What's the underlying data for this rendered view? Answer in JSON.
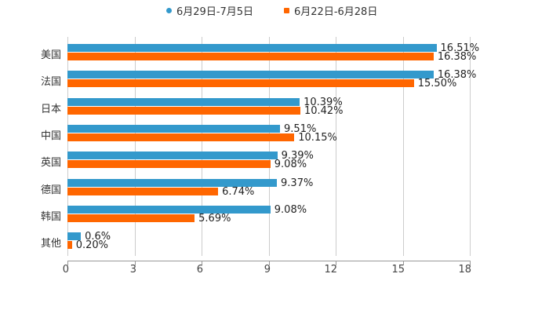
{
  "chart_data": {
    "type": "bar",
    "orientation": "horizontal",
    "title": "",
    "xlabel": "",
    "ylabel": "",
    "xlim": [
      0,
      18
    ],
    "x_ticks": [
      "0",
      "3",
      "6",
      "9",
      "12",
      "15",
      "18"
    ],
    "grid": true,
    "legend_position": "top",
    "categories": [
      "美国",
      "法国",
      "日本",
      "中国",
      "英国",
      "德国",
      "韩国",
      "其他"
    ],
    "series": [
      {
        "name": "6月29日-7月5日",
        "color": "#3399cc",
        "values": [
          16.51,
          16.38,
          10.39,
          9.51,
          9.39,
          9.37,
          9.08,
          0.6
        ],
        "labels": [
          "16.51%",
          "16.38%",
          "10.39%",
          "9.51%",
          "9.39%",
          "9.37%",
          "9.08%",
          "0.6%"
        ]
      },
      {
        "name": "6月22日-6月28日",
        "color": "#ff6600",
        "values": [
          16.38,
          15.5,
          10.42,
          10.15,
          9.08,
          6.74,
          5.69,
          0.2
        ],
        "labels": [
          "16.38%",
          "15.50%",
          "10.42%",
          "10.15%",
          "9.08%",
          "6.74%",
          "5.69%",
          "0.20%"
        ]
      }
    ]
  },
  "legend": {
    "items": [
      {
        "label": "6月29日-7月5日",
        "color": "#3399cc"
      },
      {
        "label": "6月22日-6月28日",
        "color": "#ff6600"
      }
    ]
  }
}
